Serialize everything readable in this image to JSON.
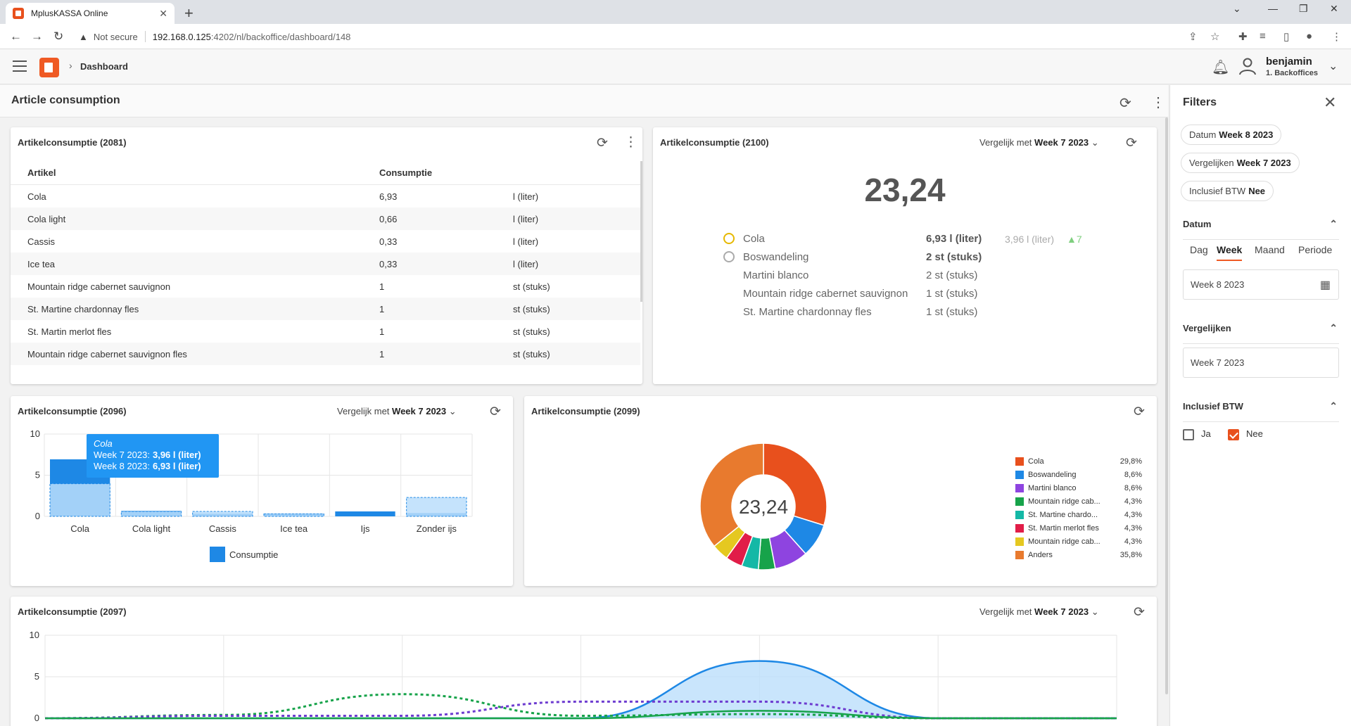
{
  "browser": {
    "tab_title": "MplusKASSA Online",
    "security_label": "Not secure",
    "url_host": "192.168.0.125",
    "url_path": ":4202/nl/backoffice/dashboard/148"
  },
  "app": {
    "breadcrumb": "Dashboard",
    "user_name": "benjamin",
    "user_sub": "1. Backoffices",
    "page_title": "Article consumption"
  },
  "table_card": {
    "title": "Artikelconsumptie (2081)",
    "columns": [
      "Artikel",
      "Consumptie",
      ""
    ],
    "rows": [
      [
        "Cola",
        "6,93",
        "l (liter)"
      ],
      [
        "Cola light",
        "0,66",
        "l (liter)"
      ],
      [
        "Cassis",
        "0,33",
        "l (liter)"
      ],
      [
        "Ice tea",
        "0,33",
        "l (liter)"
      ],
      [
        "Mountain ridge cabernet sauvignon",
        "1",
        "st (stuks)"
      ],
      [
        "St. Martine chardonnay fles",
        "1",
        "st (stuks)"
      ],
      [
        "St. Martin merlot fles",
        "1",
        "st (stuks)"
      ],
      [
        "Mountain ridge cabernet sauvignon fles",
        "1",
        "st (stuks)"
      ]
    ]
  },
  "kpi_card": {
    "title": "Artikelconsumptie (2100)",
    "compare_label": "Vergelijk met",
    "compare_value": "Week 7 2023",
    "total": "23,24",
    "ranking": [
      {
        "name": "Cola",
        "value": "6,93 l (liter)",
        "compare": "3,96 l (liter)",
        "delta": "▲7",
        "medal": "#e6b800"
      },
      {
        "name": "Boswandeling",
        "value": "2 st (stuks)",
        "compare": "",
        "delta": "",
        "medal": "#aaaaaa"
      },
      {
        "name": "Martini blanco",
        "value": "2 st (stuks)",
        "compare": "",
        "delta": "",
        "medal": ""
      },
      {
        "name": "Mountain ridge cabernet sauvignon",
        "value": "1 st (stuks)",
        "compare": "",
        "delta": "",
        "medal": ""
      },
      {
        "name": "St. Martine chardonnay fles",
        "value": "1 st (stuks)",
        "compare": "",
        "delta": "",
        "medal": ""
      }
    ]
  },
  "bar_card": {
    "title": "Artikelconsumptie (2096)",
    "compare_label": "Vergelijk met",
    "compare_value": "Week 7 2023",
    "tooltip": {
      "title": "Cola",
      "line1_label": "Week 7 2023:",
      "line1_value": "3,96 l (liter)",
      "line2_label": "Week 8 2023:",
      "line2_value": "6,93 l (liter)"
    }
  },
  "pie_card": {
    "title": "Artikelconsumptie (2099)",
    "center_label": "23,24"
  },
  "line_card": {
    "title": "Artikelconsumptie (2097)",
    "compare_label": "Vergelijk met",
    "compare_value": "Week 7 2023"
  },
  "chart_data": [
    {
      "type": "bar",
      "categories": [
        "Cola",
        "Cola light",
        "Cassis",
        "Ice tea",
        "Ijs",
        "Zonder ijs"
      ],
      "series": [
        {
          "name": "Consumptie",
          "values": [
            6.93,
            0.66,
            0.33,
            0.33,
            0.6,
            0.4
          ],
          "color": "#1e88e5"
        },
        {
          "values": [
            3.96,
            0.6,
            0.6,
            0.3,
            0,
            2.3
          ],
          "color": "#bbdefb"
        }
      ],
      "ylim": [
        0,
        10
      ],
      "yticks": [
        0,
        5,
        10
      ],
      "legend": "bottom"
    },
    {
      "type": "pie",
      "slices": [
        {
          "label": "Cola",
          "pct": "29,8%",
          "value": 29.8,
          "color": "#e8501d"
        },
        {
          "label": "Boswandeling",
          "pct": "8,6%",
          "value": 8.6,
          "color": "#1e88e5"
        },
        {
          "label": "Martini blanco",
          "pct": "8,6%",
          "value": 8.6,
          "color": "#8e44e0"
        },
        {
          "label": "Mountain ridge cab...",
          "pct": "4,3%",
          "value": 4.3,
          "color": "#17a34a"
        },
        {
          "label": "St. Martine chardo...",
          "pct": "4,3%",
          "value": 4.3,
          "color": "#14b8a6"
        },
        {
          "label": "St. Martin merlot fles",
          "pct": "4,3%",
          "value": 4.3,
          "color": "#e11d48"
        },
        {
          "label": "Mountain ridge cab...",
          "pct": "4,3%",
          "value": 4.3,
          "color": "#e5c820"
        },
        {
          "label": "Anders",
          "pct": "35,8%",
          "value": 35.8,
          "color": "#e87a2e"
        }
      ],
      "legend": "right"
    },
    {
      "type": "area",
      "x": [
        0,
        1,
        2,
        3,
        4,
        5,
        6
      ],
      "ylim": [
        0,
        10
      ],
      "yticks": [
        0,
        5,
        10
      ],
      "series": [
        {
          "values": [
            0,
            0,
            0,
            0,
            6.9,
            0,
            0
          ],
          "color": "#1e88e5",
          "style": "area"
        },
        {
          "values": [
            0,
            0.4,
            2.9,
            0.3,
            0.5,
            0,
            0
          ],
          "color": "#17a34a",
          "style": "dashed"
        },
        {
          "values": [
            0,
            0.3,
            0.3,
            2,
            2,
            0,
            0
          ],
          "color": "#6d3bd0",
          "style": "dashed"
        },
        {
          "values": [
            0,
            0,
            0,
            0,
            0.9,
            0,
            0
          ],
          "color": "#17a34a",
          "style": "solid"
        }
      ]
    }
  ],
  "filters": {
    "title": "Filters",
    "chips": [
      {
        "label": "Datum",
        "value": "Week 8 2023"
      },
      {
        "label": "Vergelijken",
        "value": "Week 7 2023"
      },
      {
        "label": "Inclusief BTW",
        "value": "Nee"
      }
    ],
    "datum_header": "Datum",
    "segments": [
      "Dag",
      "Week",
      "Maand",
      "Periode"
    ],
    "datum_value": "Week 8 2023",
    "vergelijken_header": "Vergelijken",
    "vergelijken_value": "Week 7 2023",
    "btw_header": "Inclusief BTW",
    "btw_options": [
      "Ja",
      "Nee"
    ]
  }
}
